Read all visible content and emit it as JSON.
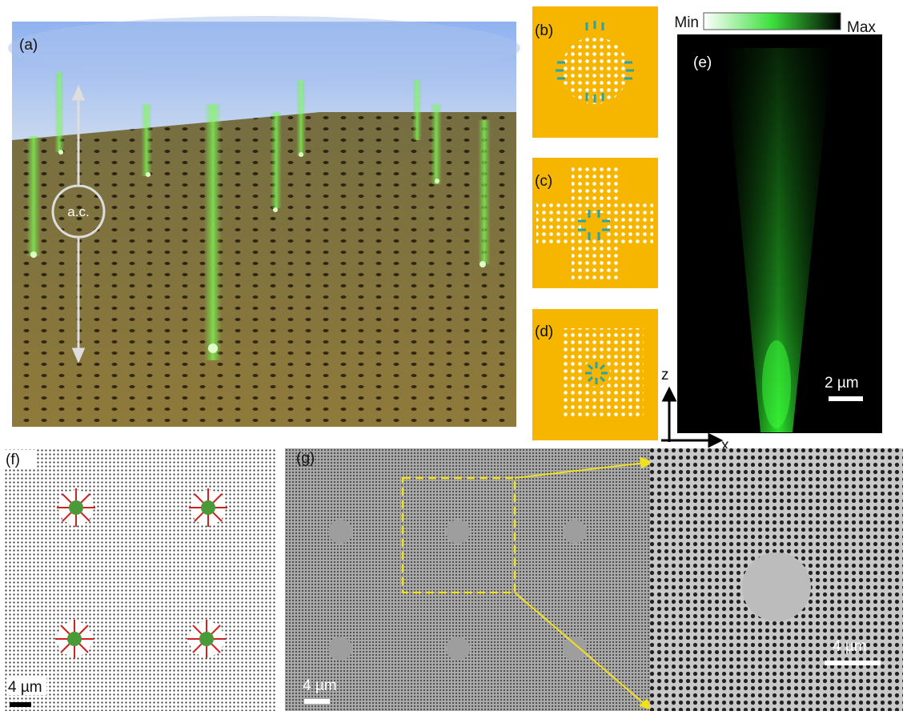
{
  "panels": {
    "a": {
      "label": "(a)",
      "annotation": "a.c."
    },
    "b": {
      "label": "(b)"
    },
    "c": {
      "label": "(c)"
    },
    "d": {
      "label": "(d)"
    },
    "e": {
      "label": "(e)",
      "colorbar_min": "Min",
      "colorbar_max": "Max",
      "scale_bar": "2 µm",
      "axis_z": "z",
      "axis_x": "x"
    },
    "f": {
      "label": "(f)",
      "scale_bar": "4 µm"
    },
    "g": {
      "label": "(g)",
      "scale_bar": "4 µm",
      "inset_scale_bar": "4 µm"
    }
  }
}
